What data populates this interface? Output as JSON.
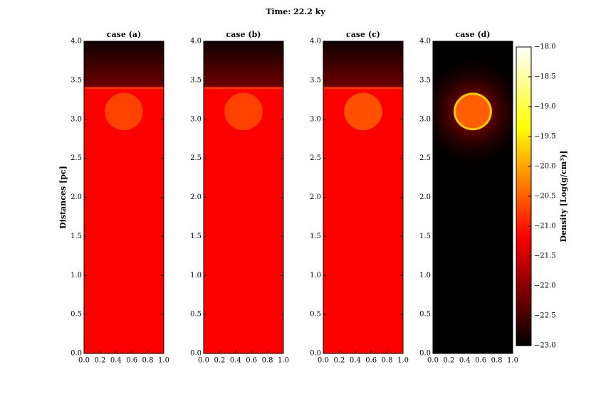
{
  "suptitle": "Time: 22.2 ky",
  "chart_data": [
    {
      "type": "heatmap",
      "title": "case (a)",
      "ylabel": "Distances [pc]",
      "colormap": "hot",
      "xlim": [
        0,
        1
      ],
      "ylim": [
        0,
        4
      ],
      "xticks": [
        {
          "value": 0,
          "label": "0.0"
        },
        0.2,
        0.4,
        0.6,
        0.8,
        {
          "value": 1,
          "label": "1.0"
        }
      ],
      "yticks": [
        {
          "value": 0,
          "label": "0.0"
        },
        0.5,
        {
          "value": 1,
          "label": "1.0"
        },
        1.5,
        {
          "value": 2,
          "label": "2.0"
        },
        2.5,
        {
          "value": 3,
          "label": "3.0"
        },
        3.5,
        {
          "value": 4,
          "label": "4.0"
        }
      ],
      "ambient": -21.2,
      "upper": [
        -22.9,
        -22.2
      ],
      "interface": {
        "y": 3.4,
        "value": -20.8
      },
      "clump": {
        "x": 0.5,
        "y": 3.1,
        "r": 0.24,
        "value": -20.7
      }
    },
    {
      "type": "heatmap",
      "title": "case (b)",
      "colormap": "hot",
      "xlim": [
        0,
        1
      ],
      "ylim": [
        0,
        4
      ],
      "xticks": [
        {
          "value": 0,
          "label": "0.0"
        },
        0.2,
        0.4,
        0.6,
        0.8,
        {
          "value": 1,
          "label": "1.0"
        }
      ],
      "yticks": [
        {
          "value": 0,
          "label": "0.0"
        },
        0.5,
        {
          "value": 1,
          "label": "1.0"
        },
        1.5,
        {
          "value": 2,
          "label": "2.0"
        },
        2.5,
        {
          "value": 3,
          "label": "3.0"
        },
        3.5,
        {
          "value": 4,
          "label": "4.0"
        }
      ],
      "ambient": -21.2,
      "upper": [
        -22.9,
        -22.2
      ],
      "interface": {
        "y": 3.4,
        "value": -20.8
      },
      "clump": {
        "x": 0.5,
        "y": 3.1,
        "r": 0.24,
        "value": -20.7
      }
    },
    {
      "type": "heatmap",
      "title": "case (c)",
      "colormap": "hot",
      "xlim": [
        0,
        1
      ],
      "ylim": [
        0,
        4
      ],
      "xticks": [
        {
          "value": 0,
          "label": "0.0"
        },
        0.2,
        0.4,
        0.6,
        0.8,
        {
          "value": 1,
          "label": "1.0"
        }
      ],
      "yticks": [
        {
          "value": 0,
          "label": "0.0"
        },
        0.5,
        {
          "value": 1,
          "label": "1.0"
        },
        1.5,
        {
          "value": 2,
          "label": "2.0"
        },
        2.5,
        {
          "value": 3,
          "label": "3.0"
        },
        3.5,
        {
          "value": 4,
          "label": "4.0"
        }
      ],
      "ambient": -21.2,
      "upper": [
        -22.9,
        -22.2
      ],
      "interface": {
        "y": 3.4,
        "value": -20.8
      },
      "clump": {
        "x": 0.5,
        "y": 3.1,
        "r": 0.24,
        "value": -20.6
      }
    },
    {
      "type": "heatmap",
      "title": "case (d)",
      "colormap": "hot",
      "xlim": [
        0,
        1
      ],
      "ylim": [
        0,
        4
      ],
      "xticks": [
        {
          "value": 0,
          "label": "0.0"
        },
        0.2,
        0.4,
        0.6,
        0.8,
        {
          "value": 1,
          "label": "1.0"
        }
      ],
      "yticks": [
        {
          "value": 0,
          "label": "0.0"
        },
        0.5,
        {
          "value": 1,
          "label": "1.0"
        },
        1.5,
        {
          "value": 2,
          "label": "2.0"
        },
        2.5,
        {
          "value": 3,
          "label": "3.0"
        },
        3.5,
        {
          "value": 4,
          "label": "4.0"
        }
      ],
      "ambient": -23.0,
      "upper": [
        -23.0,
        -23.0
      ],
      "halo": {
        "r": 0.75,
        "value": -22.3
      },
      "clump": {
        "x": 0.5,
        "y": 3.1,
        "r": 0.24,
        "value": -20.5,
        "edge_value": -19.7
      }
    },
    {
      "type": "colorbar",
      "label": "Density [Log(g/cm³)]",
      "colormap": "hot",
      "ylim": [
        -23,
        -18
      ],
      "yticks": [
        {
          "value": -23,
          "label": "−23.0"
        },
        {
          "value": -22.5,
          "label": "−22.5"
        },
        {
          "value": -22,
          "label": "−22.0"
        },
        {
          "value": -21.5,
          "label": "−21.5"
        },
        {
          "value": -21,
          "label": "−21.0"
        },
        {
          "value": -20.5,
          "label": "−20.5"
        },
        {
          "value": -20,
          "label": "−20.0"
        },
        {
          "value": -19.5,
          "label": "−19.5"
        },
        {
          "value": -19,
          "label": "−19.0"
        },
        {
          "value": -18.5,
          "label": "−18.5"
        },
        {
          "value": -18,
          "label": "−18.0"
        }
      ]
    }
  ]
}
